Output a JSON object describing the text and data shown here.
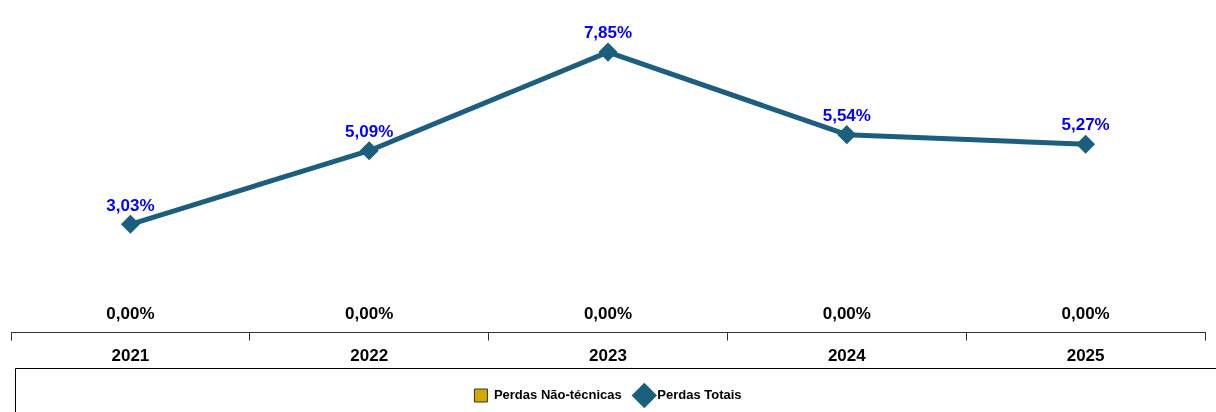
{
  "chart_data": {
    "type": "line",
    "categories": [
      "2021",
      "2022",
      "2023",
      "2024",
      "2025"
    ],
    "series": [
      {
        "name": "Perdas Não-técnicas",
        "type": "bar",
        "color": "#d4a800",
        "values": [
          0,
          0,
          0,
          0,
          0
        ],
        "value_labels": [
          "0,00%",
          "0,00%",
          "0,00%",
          "0,00%",
          "0,00%"
        ]
      },
      {
        "name": "Perdas Totais",
        "color": "#1b5e7e",
        "values": [
          3.03,
          5.09,
          7.85,
          5.54,
          5.27
        ],
        "value_labels": [
          "3,03%",
          "5,09%",
          "7,85%",
          "5,54%",
          "5,27%"
        ]
      }
    ],
    "marker": "diamond",
    "legend": "bottom",
    "grid": false
  }
}
